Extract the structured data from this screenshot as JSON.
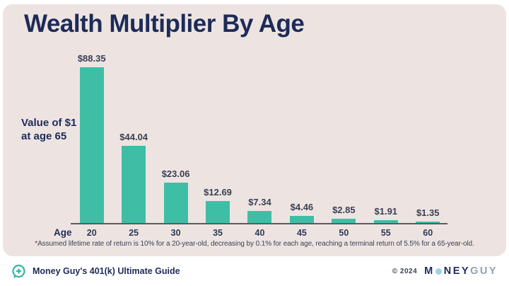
{
  "title": "Wealth Multiplier By Age",
  "y_annotation": {
    "line1": "Value of $1",
    "line2": "at age 65"
  },
  "x_axis_label": "Age",
  "footnote": "*Assumed lifetime rate of return is 10% for a 20-year-old, decreasing by 0.1% for each age, reaching a terminal return of 5.5% for a 65-year-old.",
  "footer": {
    "left_text": "Money Guy's 401(k) Ultimate Guide",
    "left_icon": "chat-plus-icon",
    "copyright": "© 2024",
    "logo": {
      "part1": "M",
      "o_icon": "target-circle-icon",
      "part2": "NEY",
      "part3": "GUY"
    }
  },
  "colors": {
    "card_background": "#EDE4E2",
    "bar": "#3FBEA6",
    "title_navy": "#1D2B57",
    "value_label": "#3A3F52",
    "axis": "#5A5B63",
    "logo_accent_blue": "#9CCFE9",
    "logo_guy_gray": "#8FA2B4",
    "footer_background": "#FFFFFF"
  },
  "chart_data": {
    "type": "bar",
    "title": "Wealth Multiplier By Age",
    "xlabel": "Age",
    "ylabel": "Value of $1 at age 65",
    "categories": [
      "20",
      "25",
      "30",
      "35",
      "40",
      "45",
      "50",
      "55",
      "60"
    ],
    "values": [
      88.35,
      44.04,
      23.06,
      12.69,
      7.34,
      4.46,
      2.85,
      1.91,
      1.35
    ],
    "value_labels": [
      "$88.35",
      "$44.04",
      "$23.06",
      "$12.69",
      "$7.34",
      "$4.46",
      "$2.85",
      "$1.91",
      "$1.35"
    ],
    "ylim": [
      0,
      90
    ],
    "grid": false,
    "legend": false,
    "bar_color": "#3FBEA6"
  }
}
